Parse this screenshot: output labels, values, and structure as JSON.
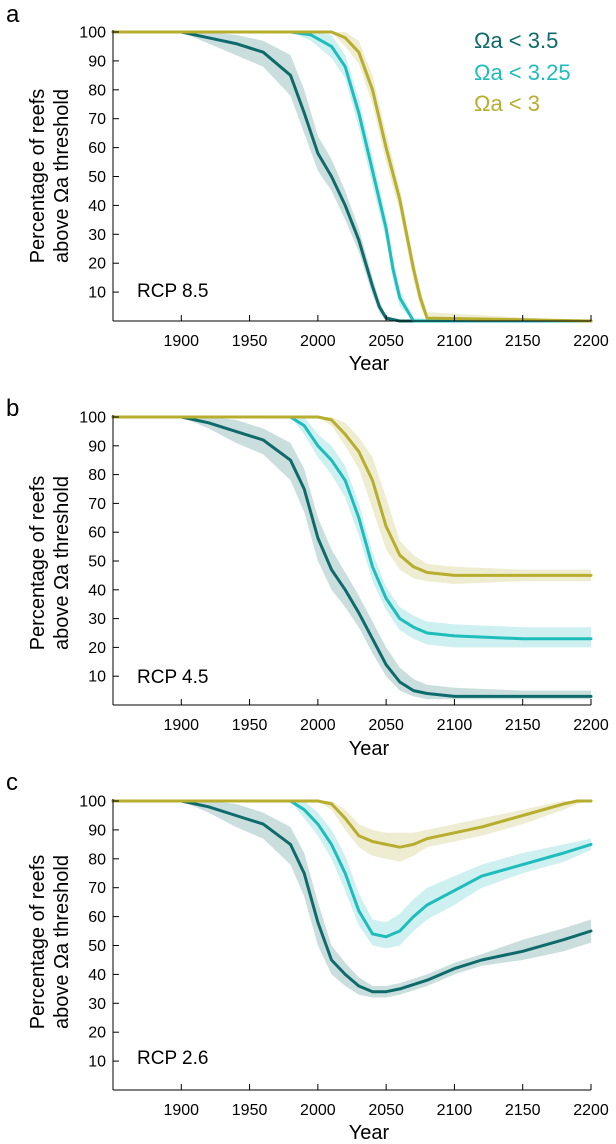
{
  "colors": {
    "omega_3_5": "#0f6b6b",
    "omega_3_25": "#1fbcbc",
    "omega_3": "#b7ad2e"
  },
  "legend": {
    "items": [
      {
        "label": "Ωa < 3.5",
        "color": "#0f6b6b"
      },
      {
        "label": "Ωa < 3.25",
        "color": "#1fbcbc"
      },
      {
        "label": "Ωa < 3",
        "color": "#b7ad2e"
      }
    ]
  },
  "chart_data": [
    {
      "type": "line",
      "panel": "a",
      "scenario": "RCP 8.5",
      "xlabel": "Year",
      "ylabel_line1": "Percentage of reefs",
      "ylabel_line2": "above Ωa threshold",
      "xlim": [
        1850,
        2200
      ],
      "ylim": [
        0,
        100
      ],
      "xticks": [
        1900,
        1950,
        2000,
        2050,
        2100,
        2150,
        2200
      ],
      "yticks": [
        10,
        20,
        30,
        40,
        50,
        60,
        70,
        80,
        90,
        100
      ],
      "series": [
        {
          "name": "Ωa < 3.5",
          "color": "#0f6b6b",
          "x": [
            1850,
            1880,
            1900,
            1920,
            1940,
            1960,
            1980,
            1990,
            2000,
            2010,
            2020,
            2030,
            2040,
            2045,
            2050,
            2060,
            2200
          ],
          "y": [
            100,
            100,
            100,
            98,
            96,
            93,
            85,
            72,
            58,
            50,
            40,
            28,
            12,
            5,
            1,
            0,
            0
          ],
          "lower": [
            100,
            100,
            100,
            96,
            92,
            88,
            78,
            65,
            52,
            45,
            35,
            24,
            9,
            3,
            0,
            0,
            0
          ],
          "upper": [
            100,
            100,
            100,
            100,
            99,
            97,
            92,
            80,
            64,
            56,
            45,
            32,
            15,
            7,
            2,
            0,
            0
          ]
        },
        {
          "name": "Ωa < 3.25",
          "color": "#1fbcbc",
          "x": [
            1850,
            1960,
            1980,
            1995,
            2010,
            2020,
            2030,
            2040,
            2050,
            2055,
            2060,
            2070,
            2200
          ],
          "y": [
            100,
            100,
            100,
            99,
            95,
            88,
            72,
            52,
            32,
            18,
            8,
            0,
            0
          ],
          "lower": [
            100,
            100,
            100,
            97,
            91,
            84,
            67,
            47,
            28,
            14,
            5,
            0,
            0
          ],
          "upper": [
            100,
            100,
            100,
            100,
            99,
            92,
            77,
            57,
            36,
            22,
            11,
            1,
            0
          ]
        },
        {
          "name": "Ωa < 3",
          "color": "#b7ad2e",
          "x": [
            1850,
            2000,
            2010,
            2020,
            2030,
            2040,
            2050,
            2060,
            2065,
            2070,
            2075,
            2080,
            2200
          ],
          "y": [
            100,
            100,
            100,
            98,
            93,
            80,
            60,
            42,
            30,
            18,
            8,
            1,
            0
          ],
          "lower": [
            100,
            100,
            100,
            95,
            89,
            75,
            55,
            38,
            26,
            14,
            5,
            0,
            0
          ],
          "upper": [
            100,
            100,
            100,
            100,
            97,
            85,
            65,
            46,
            34,
            22,
            11,
            3,
            0
          ]
        }
      ]
    },
    {
      "type": "line",
      "panel": "b",
      "scenario": "RCP 4.5",
      "xlabel": "Year",
      "ylabel_line1": "Percentage of reefs",
      "ylabel_line2": "above Ωa threshold",
      "xlim": [
        1850,
        2200
      ],
      "ylim": [
        0,
        100
      ],
      "xticks": [
        1900,
        1950,
        2000,
        2050,
        2100,
        2150,
        2200
      ],
      "yticks": [
        10,
        20,
        30,
        40,
        50,
        60,
        70,
        80,
        90,
        100
      ],
      "series": [
        {
          "name": "Ωa < 3.5",
          "color": "#0f6b6b",
          "x": [
            1850,
            1880,
            1900,
            1920,
            1940,
            1960,
            1980,
            1990,
            2000,
            2010,
            2020,
            2030,
            2040,
            2050,
            2060,
            2070,
            2080,
            2100,
            2150,
            2200
          ],
          "y": [
            100,
            100,
            100,
            98,
            95,
            92,
            85,
            75,
            58,
            47,
            40,
            32,
            23,
            14,
            8,
            5,
            4,
            3,
            3,
            3
          ],
          "lower": [
            100,
            100,
            100,
            96,
            91,
            87,
            78,
            67,
            50,
            40,
            34,
            27,
            18,
            10,
            5,
            3,
            2,
            2,
            2,
            2
          ],
          "upper": [
            100,
            100,
            100,
            100,
            99,
            96,
            91,
            82,
            65,
            54,
            46,
            38,
            29,
            20,
            13,
            9,
            7,
            6,
            5,
            5
          ]
        },
        {
          "name": "Ωa < 3.25",
          "color": "#1fbcbc",
          "x": [
            1850,
            1960,
            1980,
            1990,
            2000,
            2010,
            2020,
            2030,
            2040,
            2050,
            2060,
            2070,
            2080,
            2100,
            2150,
            2200
          ],
          "y": [
            100,
            100,
            100,
            97,
            90,
            85,
            78,
            65,
            48,
            37,
            30,
            27,
            25,
            24,
            23,
            23
          ],
          "lower": [
            100,
            100,
            100,
            94,
            86,
            80,
            72,
            59,
            43,
            33,
            26,
            23,
            21,
            20,
            20,
            20
          ],
          "upper": [
            100,
            100,
            100,
            100,
            94,
            90,
            83,
            70,
            53,
            41,
            34,
            31,
            29,
            28,
            27,
            27
          ]
        },
        {
          "name": "Ωa < 3",
          "color": "#b7ad2e",
          "x": [
            1850,
            2000,
            2010,
            2020,
            2030,
            2040,
            2050,
            2060,
            2070,
            2080,
            2100,
            2150,
            2200
          ],
          "y": [
            100,
            100,
            99,
            94,
            88,
            78,
            62,
            52,
            48,
            46,
            45,
            45,
            45
          ],
          "lower": [
            100,
            100,
            97,
            90,
            82,
            68,
            54,
            47,
            44,
            43,
            42,
            43,
            43
          ],
          "upper": [
            100,
            100,
            100,
            98,
            93,
            86,
            72,
            57,
            52,
            49,
            48,
            47,
            47
          ]
        }
      ]
    },
    {
      "type": "line",
      "panel": "c",
      "scenario": "RCP 2.6",
      "xlabel": "Year",
      "ylabel_line1": "Percentage of reefs",
      "ylabel_line2": "above Ωa threshold",
      "xlim": [
        1850,
        2200
      ],
      "ylim": [
        0,
        100
      ],
      "xticks": [
        1900,
        1950,
        2000,
        2050,
        2100,
        2150,
        2200
      ],
      "yticks": [
        10,
        20,
        30,
        40,
        50,
        60,
        70,
        80,
        90,
        100
      ],
      "series": [
        {
          "name": "Ωa < 3.5",
          "color": "#0f6b6b",
          "x": [
            1850,
            1880,
            1900,
            1920,
            1940,
            1960,
            1980,
            1990,
            2000,
            2010,
            2020,
            2030,
            2040,
            2050,
            2060,
            2080,
            2100,
            2120,
            2150,
            2180,
            2200
          ],
          "y": [
            100,
            100,
            100,
            98,
            95,
            92,
            85,
            75,
            58,
            45,
            40,
            36,
            34,
            34,
            35,
            38,
            42,
            45,
            48,
            52,
            55
          ],
          "lower": [
            100,
            100,
            100,
            96,
            91,
            87,
            78,
            67,
            50,
            40,
            36,
            33,
            32,
            32,
            33,
            36,
            40,
            43,
            45,
            48,
            51
          ],
          "upper": [
            100,
            100,
            100,
            100,
            99,
            96,
            91,
            82,
            65,
            50,
            44,
            39,
            36,
            36,
            37,
            40,
            44,
            47,
            52,
            56,
            59
          ]
        },
        {
          "name": "Ωa < 3.25",
          "color": "#1fbcbc",
          "x": [
            1850,
            1960,
            1980,
            1990,
            2000,
            2010,
            2020,
            2030,
            2040,
            2050,
            2060,
            2070,
            2080,
            2100,
            2120,
            2150,
            2180,
            2200
          ],
          "y": [
            100,
            100,
            100,
            97,
            92,
            85,
            75,
            62,
            54,
            53,
            55,
            60,
            64,
            69,
            74,
            78,
            82,
            85
          ],
          "lower": [
            100,
            100,
            100,
            94,
            88,
            80,
            69,
            57,
            50,
            49,
            50,
            55,
            59,
            64,
            70,
            75,
            79,
            83
          ],
          "upper": [
            100,
            100,
            100,
            100,
            96,
            90,
            81,
            68,
            59,
            58,
            61,
            66,
            70,
            74,
            78,
            82,
            85,
            87
          ]
        },
        {
          "name": "Ωa < 3",
          "color": "#b7ad2e",
          "x": [
            1850,
            2000,
            2010,
            2020,
            2030,
            2040,
            2050,
            2060,
            2070,
            2080,
            2100,
            2120,
            2150,
            2180,
            2190,
            2200
          ],
          "y": [
            100,
            100,
            99,
            94,
            88,
            86,
            85,
            84,
            85,
            87,
            89,
            91,
            95,
            99,
            100,
            100
          ],
          "lower": [
            100,
            100,
            97,
            90,
            84,
            81,
            80,
            79,
            81,
            84,
            86,
            88,
            92,
            97,
            99,
            100
          ],
          "upper": [
            100,
            100,
            100,
            97,
            92,
            90,
            89,
            89,
            89,
            90,
            92,
            94,
            97,
            100,
            100,
            100
          ]
        }
      ]
    }
  ]
}
